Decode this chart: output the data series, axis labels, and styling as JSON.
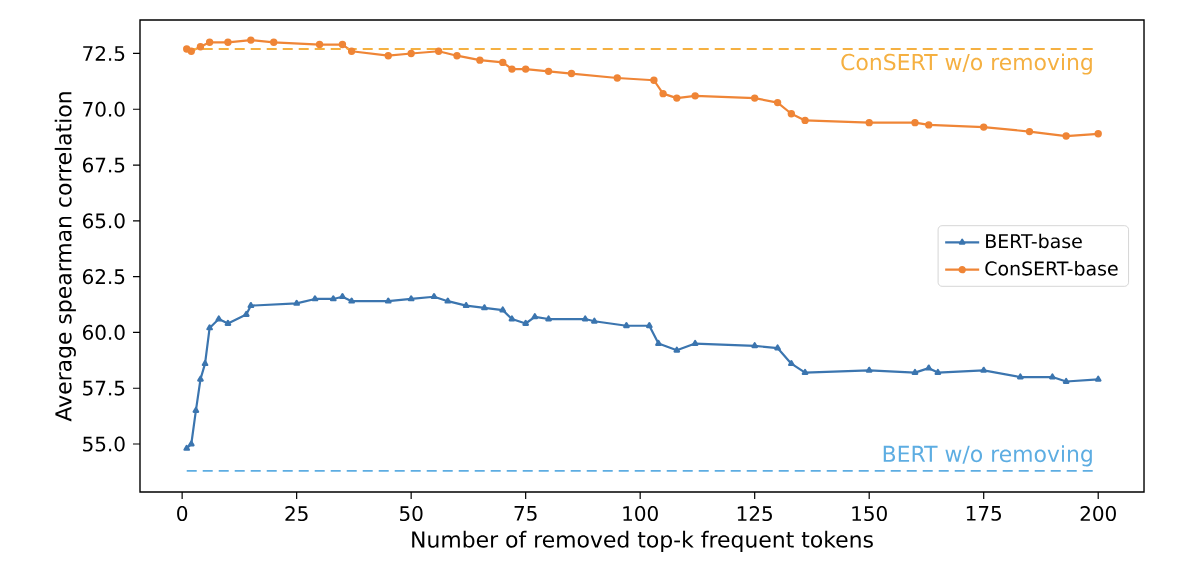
{
  "chart_data": {
    "type": "line",
    "xlabel": "Number of removed top-k frequent tokens",
    "ylabel": "Average spearman correlation",
    "xlim": [
      -9.2,
      210
    ],
    "xticks": [
      0,
      25,
      50,
      75,
      100,
      125,
      150,
      175,
      200
    ],
    "ylim": [
      52.85,
      74.0
    ],
    "yticks": [
      {
        "value": 55,
        "label": "55.0"
      },
      57.5,
      {
        "value": 60,
        "label": "60.0"
      },
      62.5,
      {
        "value": 65,
        "label": "65.0"
      },
      67.5,
      {
        "value": 70,
        "label": "70.0"
      },
      72.5
    ],
    "grid": false,
    "legend": "right",
    "series": [
      {
        "name": "BERT-base",
        "color": "#3b75af",
        "marker": "triangle",
        "x": [
          1,
          2,
          3,
          4,
          5,
          6,
          8,
          10,
          14,
          15,
          25,
          29,
          33,
          35,
          37,
          45,
          50,
          55,
          58,
          62,
          66,
          70,
          72,
          75,
          77,
          80,
          88,
          90,
          97,
          102,
          104,
          108,
          112,
          125,
          130,
          133,
          136,
          150,
          160,
          163,
          165,
          175,
          183,
          190,
          193,
          200
        ],
        "values": [
          54.8,
          55.0,
          56.5,
          57.9,
          58.6,
          60.2,
          60.6,
          60.4,
          60.8,
          61.2,
          61.3,
          61.5,
          61.5,
          61.6,
          61.4,
          61.4,
          61.5,
          61.6,
          61.4,
          61.2,
          61.1,
          61.0,
          60.6,
          60.4,
          60.7,
          60.6,
          60.6,
          60.5,
          60.3,
          60.3,
          59.5,
          59.2,
          59.5,
          59.4,
          59.3,
          58.6,
          58.2,
          58.3,
          58.2,
          58.4,
          58.2,
          58.3,
          58.0,
          58.0,
          57.8,
          57.9
        ]
      },
      {
        "name": "ConSERT-base",
        "color": "#ef8536",
        "marker": "circle",
        "x": [
          1,
          2,
          4,
          6,
          10,
          15,
          20,
          30,
          35,
          37,
          45,
          50,
          56,
          60,
          65,
          70,
          72,
          75,
          80,
          85,
          95,
          103,
          105,
          108,
          112,
          125,
          130,
          133,
          136,
          150,
          160,
          163,
          175,
          185,
          193,
          200
        ],
        "values": [
          72.7,
          72.6,
          72.8,
          73.0,
          73.0,
          73.1,
          73.0,
          72.9,
          72.9,
          72.6,
          72.4,
          72.5,
          72.6,
          72.4,
          72.2,
          72.1,
          71.8,
          71.8,
          71.7,
          71.6,
          71.4,
          71.3,
          70.7,
          70.5,
          70.6,
          70.5,
          70.3,
          69.8,
          69.5,
          69.4,
          69.4,
          69.3,
          69.2,
          69.0,
          68.8,
          68.9
        ]
      }
    ],
    "ref_lines": [
      {
        "axis": "y",
        "value": 72.7,
        "label": "ConSERT w/o removing",
        "color": "#f5b041",
        "line_style": "dashed"
      },
      {
        "axis": "y",
        "value": 53.8,
        "label": "BERT w/o removing",
        "color": "#5dade2",
        "line_style": "dashed"
      }
    ]
  }
}
